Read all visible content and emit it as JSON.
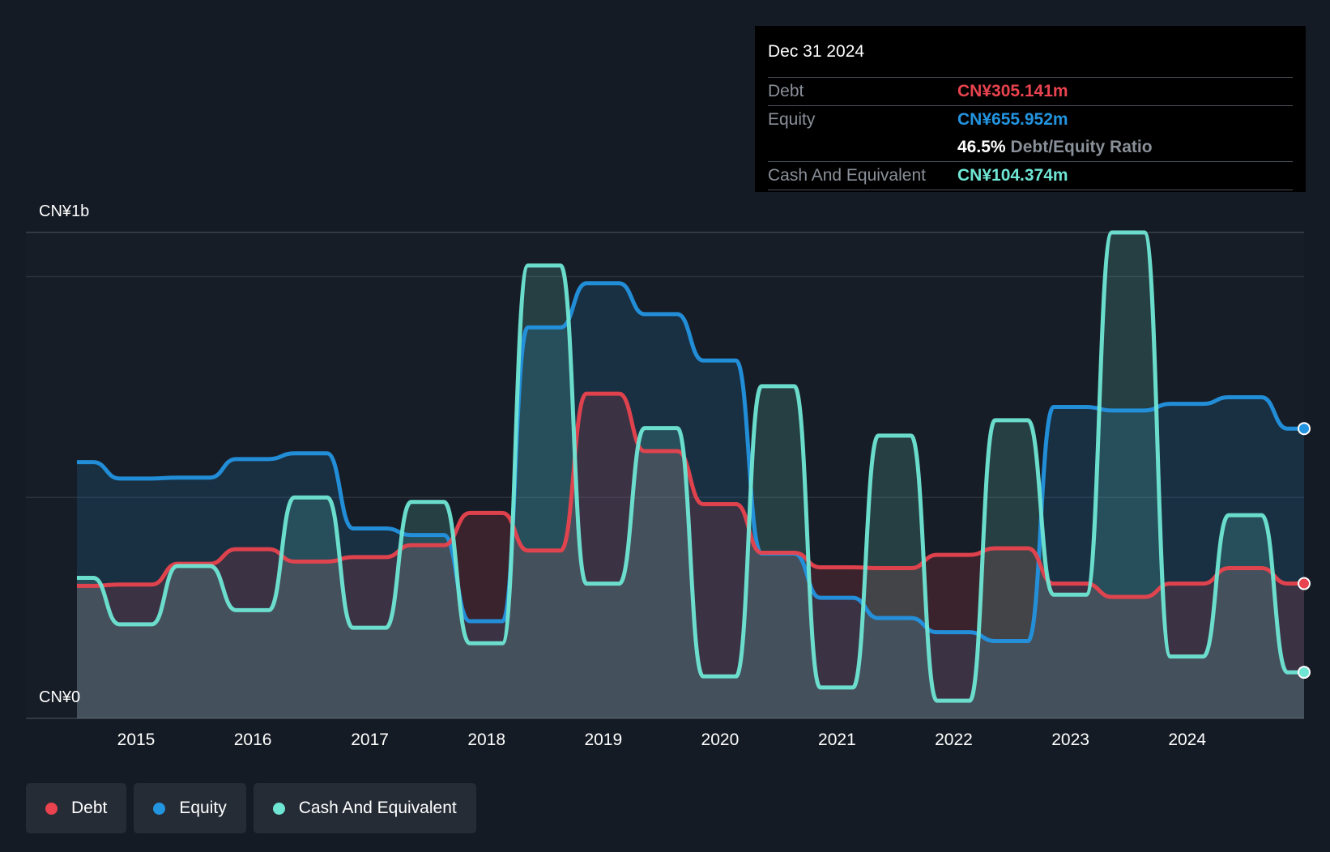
{
  "tooltip": {
    "date": "Dec 31 2024",
    "debt_label": "Debt",
    "debt_value": "CN¥305.141m",
    "equity_label": "Equity",
    "equity_value": "CN¥655.952m",
    "ratio_value": "46.5%",
    "ratio_label": "Debt/Equity Ratio",
    "cash_label": "Cash And Equivalent",
    "cash_value": "CN¥104.374m"
  },
  "y_axis": {
    "top_label": "CN¥1b",
    "bottom_label": "CN¥0"
  },
  "legend": [
    {
      "label": "Debt",
      "color": "#e8434e"
    },
    {
      "label": "Equity",
      "color": "#2394e0"
    },
    {
      "label": "Cash And Equivalent",
      "color": "#6fe6d4"
    }
  ],
  "colors": {
    "debt": "#e8434e",
    "equity": "#2394e0",
    "cash": "#6fe6d4",
    "background": "#151b24"
  },
  "chart_data": {
    "type": "area",
    "ylim": [
      0,
      1100
    ],
    "unit": "CN¥ millions",
    "grid": true,
    "legend_position": "bottom-left",
    "x_ticks": [
      "2015",
      "2016",
      "2017",
      "2018",
      "2019",
      "2020",
      "2021",
      "2022",
      "2023",
      "2024"
    ],
    "series": [
      {
        "name": "Debt",
        "points": [
          [
            "2014-06-30",
            300
          ],
          [
            "2014-12-31",
            303
          ],
          [
            "2015-06-30",
            350
          ],
          [
            "2015-12-31",
            383
          ],
          [
            "2016-06-30",
            355
          ],
          [
            "2016-12-31",
            365
          ],
          [
            "2017-06-30",
            392
          ],
          [
            "2017-12-31",
            465
          ],
          [
            "2018-06-30",
            380
          ],
          [
            "2018-12-31",
            735
          ],
          [
            "2019-06-30",
            605
          ],
          [
            "2019-12-31",
            485
          ],
          [
            "2020-06-30",
            375
          ],
          [
            "2020-12-31",
            342
          ],
          [
            "2021-06-30",
            340
          ],
          [
            "2021-12-31",
            370
          ],
          [
            "2022-06-30",
            385
          ],
          [
            "2022-12-31",
            305
          ],
          [
            "2023-06-30",
            275
          ],
          [
            "2023-12-31",
            305
          ],
          [
            "2024-06-30",
            340
          ],
          [
            "2024-12-31",
            305.141
          ]
        ]
      },
      {
        "name": "Equity",
        "points": [
          [
            "2014-06-30",
            580
          ],
          [
            "2014-12-31",
            543
          ],
          [
            "2015-06-30",
            545
          ],
          [
            "2015-12-31",
            587
          ],
          [
            "2016-06-30",
            600
          ],
          [
            "2016-12-31",
            430
          ],
          [
            "2017-06-30",
            415
          ],
          [
            "2017-12-31",
            220
          ],
          [
            "2018-06-30",
            885
          ],
          [
            "2018-12-31",
            985
          ],
          [
            "2019-06-30",
            915
          ],
          [
            "2019-12-31",
            810
          ],
          [
            "2020-06-30",
            373
          ],
          [
            "2020-12-31",
            273
          ],
          [
            "2021-06-30",
            227
          ],
          [
            "2021-12-31",
            195
          ],
          [
            "2022-06-30",
            175
          ],
          [
            "2022-12-31",
            705
          ],
          [
            "2023-06-30",
            697
          ],
          [
            "2023-12-31",
            712
          ],
          [
            "2024-06-30",
            727
          ],
          [
            "2024-12-31",
            655.952
          ]
        ]
      },
      {
        "name": "Cash And Equivalent",
        "points": [
          [
            "2014-06-30",
            318
          ],
          [
            "2014-12-31",
            213
          ],
          [
            "2015-06-30",
            345
          ],
          [
            "2015-12-31",
            245
          ],
          [
            "2016-06-30",
            500
          ],
          [
            "2016-12-31",
            205
          ],
          [
            "2017-06-30",
            490
          ],
          [
            "2017-12-31",
            170
          ],
          [
            "2018-06-30",
            1025
          ],
          [
            "2018-12-31",
            305
          ],
          [
            "2019-06-30",
            657
          ],
          [
            "2019-12-31",
            95
          ],
          [
            "2020-06-30",
            752
          ],
          [
            "2020-12-31",
            70
          ],
          [
            "2021-06-30",
            640
          ],
          [
            "2021-12-31",
            40
          ],
          [
            "2022-06-30",
            675
          ],
          [
            "2022-12-31",
            280
          ],
          [
            "2023-06-30",
            1100
          ],
          [
            "2023-12-31",
            140
          ],
          [
            "2024-06-30",
            460
          ],
          [
            "2024-12-31",
            104.374
          ]
        ]
      }
    ]
  }
}
